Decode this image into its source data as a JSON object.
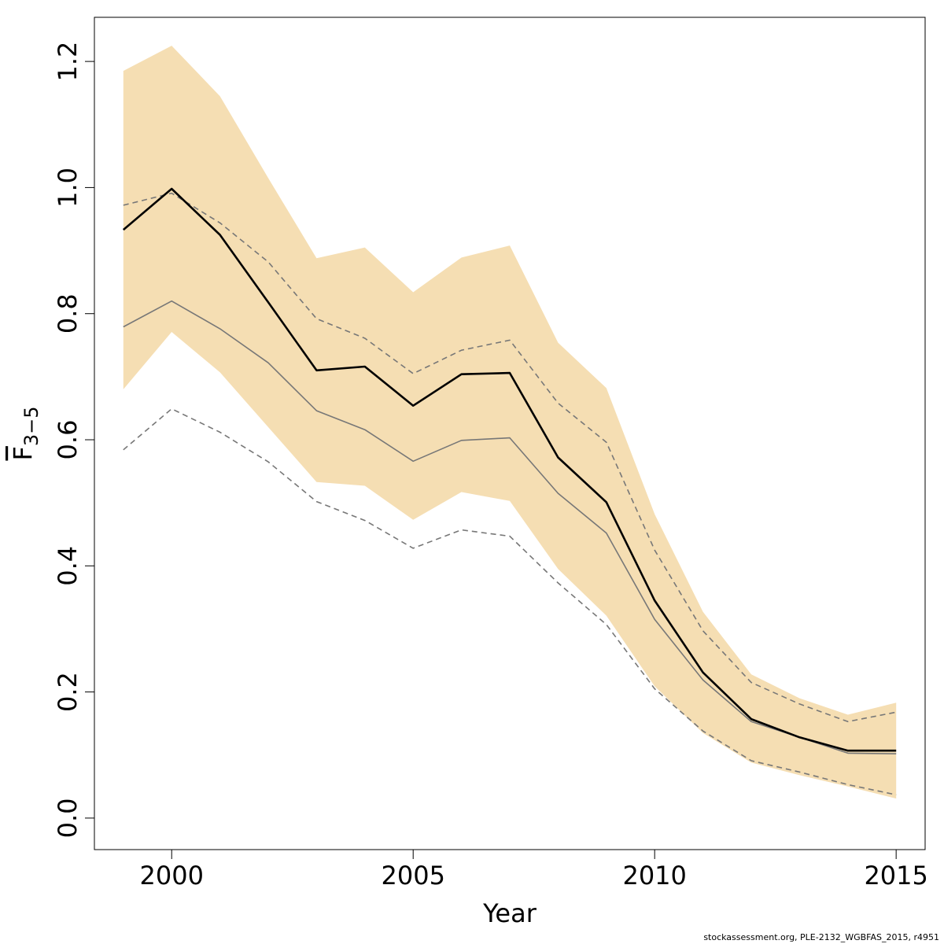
{
  "chart_data": {
    "type": "line",
    "xlabel": "Year",
    "ylabel_main": "F",
    "ylabel_sub": "3−5",
    "xlim": [
      1998.4,
      2015.6
    ],
    "ylim": [
      -0.05,
      1.27
    ],
    "x_ticks": [
      2000,
      2005,
      2010,
      2015
    ],
    "x_tick_labels": [
      "2000",
      "2005",
      "2010",
      "2015"
    ],
    "y_ticks": [
      0.0,
      0.2,
      0.4,
      0.6,
      0.8,
      1.0,
      1.2
    ],
    "y_tick_labels": [
      "0.0",
      "0.2",
      "0.4",
      "0.6",
      "0.8",
      "1.0",
      "1.2"
    ],
    "x": [
      1999,
      2000,
      2001,
      2002,
      2003,
      2004,
      2005,
      2006,
      2007,
      2008,
      2009,
      2010,
      2011,
      2012,
      2013,
      2014,
      2015
    ],
    "band": {
      "color": "#f5deb3",
      "upper": [
        1.185,
        1.225,
        1.145,
        1.015,
        0.888,
        0.905,
        0.834,
        0.889,
        0.908,
        0.754,
        0.682,
        0.482,
        0.327,
        0.228,
        0.19,
        0.164,
        0.183
      ],
      "lower": [
        0.68,
        0.771,
        0.707,
        0.62,
        0.533,
        0.527,
        0.473,
        0.517,
        0.503,
        0.395,
        0.321,
        0.209,
        0.135,
        0.088,
        0.068,
        0.05,
        0.031
      ]
    },
    "series": [
      {
        "role": "main",
        "color": "#000000",
        "style": "solid",
        "values": [
          0.933,
          0.998,
          0.925,
          0.818,
          0.71,
          0.716,
          0.654,
          0.704,
          0.706,
          0.572,
          0.501,
          0.345,
          0.231,
          0.157,
          0.128,
          0.107,
          0.107
        ]
      },
      {
        "role": "previous",
        "color": "#777777",
        "style": "solid",
        "values": [
          0.779,
          0.82,
          0.776,
          0.722,
          0.646,
          0.616,
          0.566,
          0.599,
          0.603,
          0.515,
          0.452,
          0.315,
          0.219,
          0.153,
          0.128,
          0.103,
          0.102
        ]
      },
      {
        "role": "previous-upper",
        "color": "#777777",
        "style": "dashed",
        "values": [
          0.972,
          0.991,
          0.944,
          0.882,
          0.792,
          0.761,
          0.705,
          0.742,
          0.758,
          0.658,
          0.596,
          0.425,
          0.297,
          0.215,
          0.181,
          0.153,
          0.168
        ]
      },
      {
        "role": "previous-lower",
        "color": "#777777",
        "style": "dashed",
        "values": [
          0.584,
          0.649,
          0.612,
          0.565,
          0.502,
          0.472,
          0.428,
          0.457,
          0.447,
          0.373,
          0.307,
          0.205,
          0.138,
          0.091,
          0.073,
          0.053,
          0.037
        ]
      }
    ]
  },
  "footer": "stockassessment.org, PLE-2132_WGBFAS_2015, r4951"
}
